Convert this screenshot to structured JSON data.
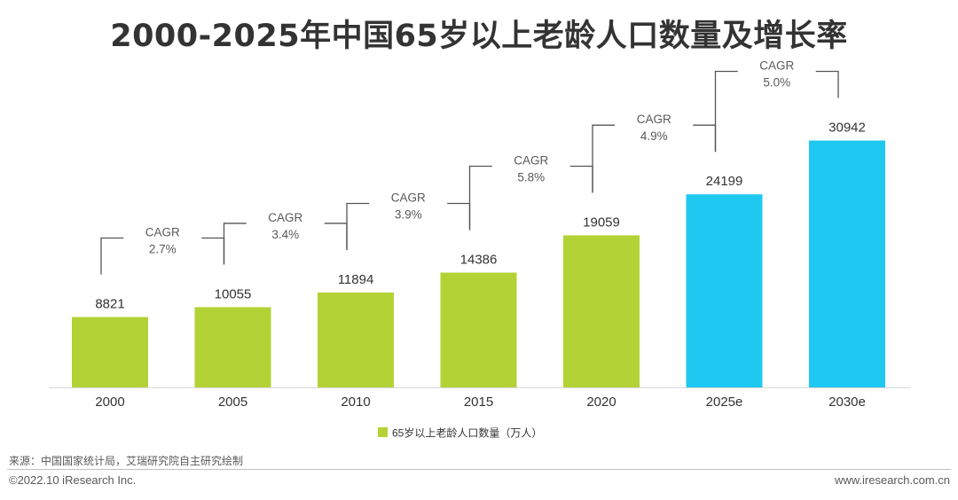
{
  "title": "2000-2025年中国65岁以上老龄人口数量及增长率",
  "chart_data": {
    "type": "bar",
    "title": "2000-2025年中国65岁以上老龄人口数量及增长率",
    "categories": [
      "2000",
      "2005",
      "2010",
      "2015",
      "2020",
      "2025e",
      "2030e"
    ],
    "series": [
      {
        "name": "65岁以上老龄人口数量（万人）",
        "values": [
          8821,
          10055,
          11894,
          14386,
          19059,
          24199,
          30942
        ],
        "color": "#b3d235",
        "forecast_color": "#1fc8f0"
      }
    ],
    "forecast_categories": [
      "2025e",
      "2030e"
    ],
    "ylim": [
      0,
      36000
    ],
    "xlabel": "",
    "ylabel": "",
    "grid": false,
    "legend_position": "bottom-center",
    "cagr_annotations": [
      {
        "from": "2000",
        "to": "2005",
        "label": "CAGR",
        "value": "2.7%"
      },
      {
        "from": "2005",
        "to": "2010",
        "label": "CAGR",
        "value": "3.4%"
      },
      {
        "from": "2010",
        "to": "2015",
        "label": "CAGR",
        "value": "3.9%"
      },
      {
        "from": "2015",
        "to": "2020",
        "label": "CAGR",
        "value": "5.8%"
      },
      {
        "from": "2020",
        "to": "2025e",
        "label": "CAGR",
        "value": "4.9%"
      },
      {
        "from": "2025e",
        "to": "2030e",
        "label": "CAGR",
        "value": "5.0%"
      }
    ]
  },
  "source": "来源：中国国家统计局，艾瑞研究院自主研究绘制",
  "footer": {
    "copyright": "©2022.10 iResearch Inc.",
    "website": "www.iresearch.com.cn"
  }
}
